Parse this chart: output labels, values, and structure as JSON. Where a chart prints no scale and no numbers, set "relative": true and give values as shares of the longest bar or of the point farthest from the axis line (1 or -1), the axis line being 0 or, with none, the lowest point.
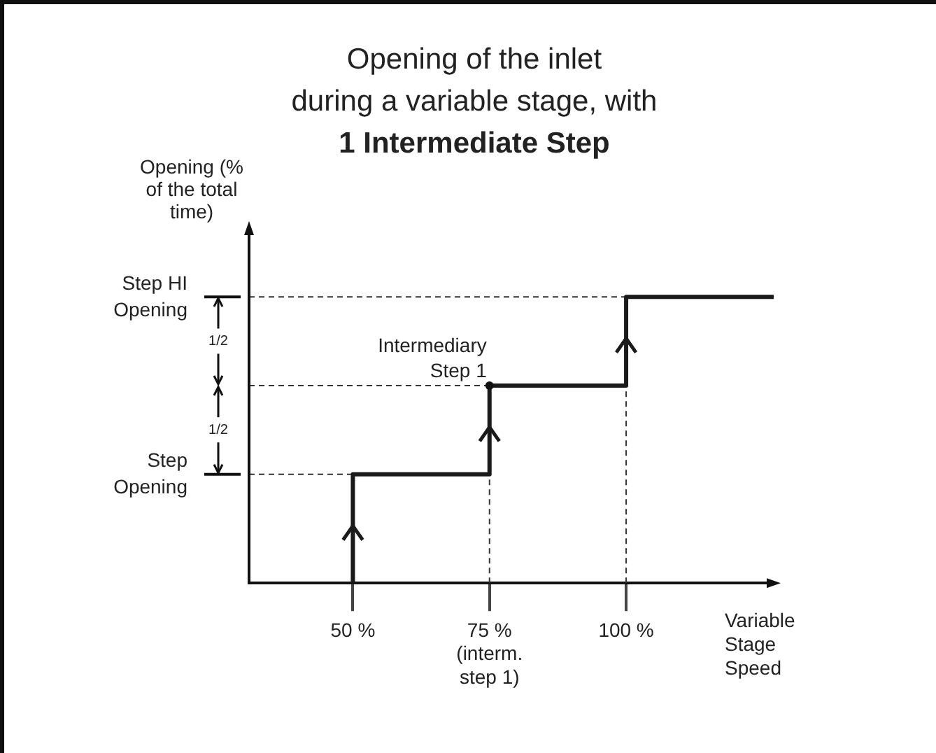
{
  "chart_data": {
    "type": "step",
    "title": "Opening of the inlet\nduring a variable stage, with",
    "subtitle": "1 Intermediate Step",
    "xlabel": "Variable Stage Speed",
    "ylabel": "Opening (% of the total time)",
    "relative": true,
    "x": [
      50,
      50,
      75,
      100,
      127
    ],
    "series": [
      {
        "color": "#1a1a1a",
        "values": [
          0,
          0.38,
          0.69,
          1,
          1
        ]
      }
    ],
    "xlim": [
      31,
      127
    ],
    "xticks": [
      {
        "value": 50,
        "label": "50 %"
      },
      {
        "value": 75,
        "label": "75 %\n(interm.\nstep 1)"
      },
      {
        "value": 100,
        "label": "100 %"
      }
    ],
    "ref_lines": [
      {
        "axis": "y",
        "value": 0.38,
        "label": "Step Opening",
        "line_style": "dashed"
      },
      {
        "axis": "y",
        "value": 0.69,
        "line_style": "dashed"
      },
      {
        "axis": "y",
        "value": 1,
        "label": "Step HI Opening",
        "line_style": "dashed"
      },
      {
        "axis": "x",
        "value": 75,
        "line_style": "dashed"
      },
      {
        "axis": "x",
        "value": 100,
        "line_style": "dashed"
      }
    ],
    "annotations": [
      {
        "text": "Intermediary Step 1",
        "x": 75,
        "y": 0.69
      },
      "1/2",
      "1/2"
    ],
    "grid": false,
    "legend": false,
    "marker": "none",
    "line_style": "solid"
  }
}
